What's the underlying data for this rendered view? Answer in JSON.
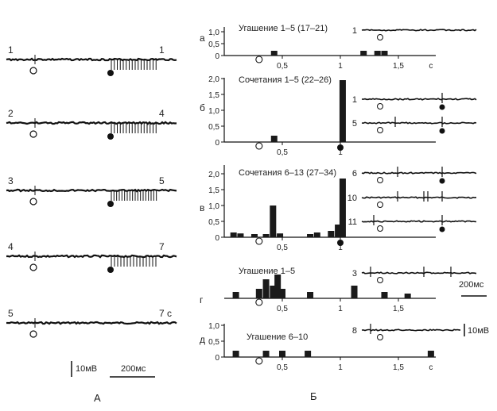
{
  "part_a": {
    "label": "А",
    "scale_bar_v": "10мВ",
    "scale_bar_h": "200мс",
    "traces": [
      {
        "left": "1",
        "right": "1",
        "cs": true,
        "spike_count": 16
      },
      {
        "left": "2",
        "right": "4",
        "cs": true,
        "spike_count": 16
      },
      {
        "left": "3",
        "right": "5",
        "cs": true,
        "spike_count": 18
      },
      {
        "left": "4",
        "right": "7",
        "cs": true,
        "spike_count": 15
      },
      {
        "left": "5",
        "right": "7 с",
        "cs": false,
        "spike_count": 0
      }
    ]
  },
  "part_b": {
    "label": "Б",
    "scale_bar_h": "200мс",
    "scale_bar_v": "10мВ"
  },
  "chart_data": [
    {
      "type": "bar",
      "panel": "а",
      "title": "Угашение 1–5 (17–21)",
      "x_ticks": [
        "0,5",
        "1",
        "1,5",
        "с"
      ],
      "y_ticks": [
        "0",
        "0,5",
        "1,0"
      ],
      "ylim": [
        0,
        1.0
      ],
      "bars": [
        {
          "x": 0.43,
          "y": 0.2
        },
        {
          "x": 1.2,
          "y": 0.2
        },
        {
          "x": 1.32,
          "y": 0.2
        },
        {
          "x": 1.38,
          "y": 0.2
        }
      ],
      "records": [
        {
          "label": "1"
        }
      ]
    },
    {
      "type": "bar",
      "panel": "б",
      "title": "Сочетания 1–5 (22–26)",
      "x_ticks": [
        "0,5",
        "1"
      ],
      "y_ticks": [
        "0",
        "0,5",
        "1,0",
        "1,5",
        "2,0"
      ],
      "ylim": [
        0,
        2.0
      ],
      "bars": [
        {
          "x": 0.43,
          "y": 0.2
        },
        {
          "x": 1.02,
          "y": 1.95
        }
      ],
      "records": [
        {
          "label": "1"
        },
        {
          "label": "5"
        }
      ]
    },
    {
      "type": "bar",
      "panel": "в",
      "title": "Сочетания 6–13 (27–34)",
      "x_ticks": [
        "0,5",
        "1"
      ],
      "y_ticks": [
        "0",
        "0,5",
        "1,0",
        "1,5",
        "2,0"
      ],
      "ylim": [
        0,
        2.0
      ],
      "bars": [
        {
          "x": 0.08,
          "y": 0.15
        },
        {
          "x": 0.14,
          "y": 0.12
        },
        {
          "x": 0.26,
          "y": 0.1
        },
        {
          "x": 0.36,
          "y": 0.1
        },
        {
          "x": 0.42,
          "y": 1.0
        },
        {
          "x": 0.48,
          "y": 0.12
        },
        {
          "x": 0.74,
          "y": 0.1
        },
        {
          "x": 0.8,
          "y": 0.15
        },
        {
          "x": 0.92,
          "y": 0.2
        },
        {
          "x": 0.98,
          "y": 0.4
        },
        {
          "x": 1.02,
          "y": 1.85
        }
      ],
      "records": [
        {
          "label": "6"
        },
        {
          "label": "10"
        },
        {
          "label": "11"
        }
      ]
    },
    {
      "type": "bar",
      "panel": "г",
      "title": "Угашение 1–5",
      "x_ticks": [
        "0,5",
        "1",
        "1,5"
      ],
      "y_ticks": [],
      "bars": [
        {
          "x": 0.1,
          "y": 0.2
        },
        {
          "x": 0.3,
          "y": 0.3
        },
        {
          "x": 0.36,
          "y": 0.6
        },
        {
          "x": 0.42,
          "y": 0.4
        },
        {
          "x": 0.46,
          "y": 0.75
        },
        {
          "x": 0.5,
          "y": 0.3
        },
        {
          "x": 0.74,
          "y": 0.2
        },
        {
          "x": 1.12,
          "y": 0.4
        },
        {
          "x": 1.38,
          "y": 0.2
        },
        {
          "x": 1.58,
          "y": 0.15
        }
      ],
      "records": [
        {
          "label": "3"
        }
      ]
    },
    {
      "type": "bar",
      "panel": "д",
      "title": "Угашение 6–10",
      "x_ticks": [
        "0,5",
        "1",
        "1,5",
        "с"
      ],
      "y_ticks": [
        "0",
        "0,5",
        "1,0"
      ],
      "ylim": [
        0,
        1.0
      ],
      "bars": [
        {
          "x": 0.1,
          "y": 0.2
        },
        {
          "x": 0.36,
          "y": 0.2
        },
        {
          "x": 0.5,
          "y": 0.2
        },
        {
          "x": 0.72,
          "y": 0.2
        },
        {
          "x": 1.78,
          "y": 0.2
        }
      ],
      "records": [
        {
          "label": "8"
        }
      ]
    }
  ]
}
